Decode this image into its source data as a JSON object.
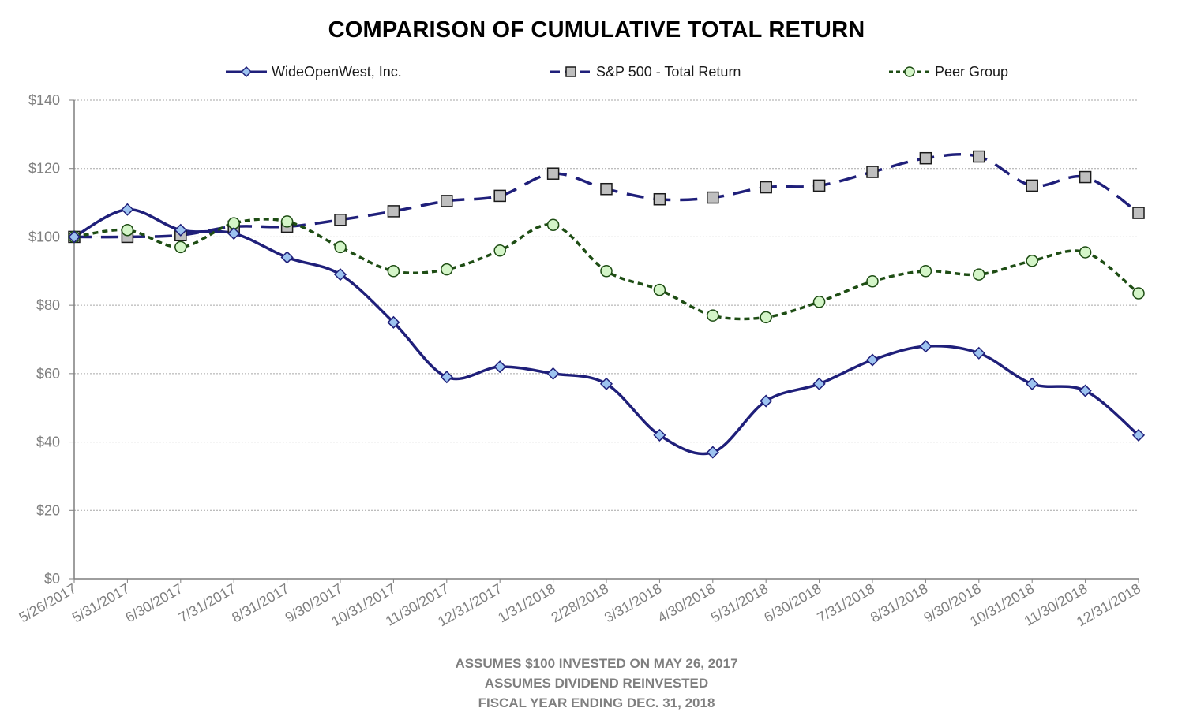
{
  "chart_data": {
    "type": "line",
    "title": "COMPARISON OF CUMULATIVE TOTAL RETURN",
    "x": [
      "5/26/2017",
      "5/31/2017",
      "6/30/2017",
      "7/31/2017",
      "8/31/2017",
      "9/30/2017",
      "10/31/2017",
      "11/30/2017",
      "12/31/2017",
      "1/31/2018",
      "2/28/2018",
      "3/31/2018",
      "4/30/2018",
      "5/31/2018",
      "6/30/2018",
      "7/31/2018",
      "8/31/2018",
      "9/30/2018",
      "10/31/2018",
      "11/30/2018",
      "12/31/2018"
    ],
    "series": [
      {
        "name": "WideOpenWest, Inc.",
        "color": "#1f1f7a",
        "marker": "diamond",
        "marker_fill": "#9dc3f0",
        "dash": "solid",
        "values": [
          100,
          108,
          102,
          101,
          94,
          89,
          75,
          59,
          62,
          60,
          57,
          42,
          37,
          52,
          57,
          64,
          68,
          66,
          57,
          55,
          42
        ]
      },
      {
        "name": "S&P 500 - Total Return",
        "color": "#1f1f7a",
        "marker": "square",
        "marker_fill": "#bfbfbf",
        "dash": "long-dash",
        "values": [
          100,
          100,
          100.5,
          103,
          103,
          105,
          107.5,
          110.5,
          112,
          118.5,
          114,
          111,
          111.5,
          114.5,
          115,
          119,
          123,
          123.5,
          115,
          117.5,
          107
        ]
      },
      {
        "name": "Peer Group",
        "color": "#1e4d14",
        "marker": "circle",
        "marker_fill": "#d4f5c8",
        "dash": "dotted",
        "values": [
          100,
          102,
          97,
          104,
          104.5,
          97,
          90,
          90.5,
          96,
          103.5,
          90,
          84.5,
          77,
          76.5,
          81,
          87,
          90,
          89,
          93,
          95.5,
          83.5
        ]
      }
    ],
    "ylim": [
      0,
      140
    ],
    "yticks": [
      0,
      20,
      40,
      60,
      80,
      100,
      120,
      140
    ],
    "ytick_labels": [
      "$0",
      "$20",
      "$40",
      "$60",
      "$80",
      "$100",
      "$120",
      "$140"
    ],
    "grid": "horizontal-dotted",
    "legend_position": "top",
    "xlabel": "",
    "ylabel": ""
  },
  "footnotes": [
    "ASSUMES $100 INVESTED ON MAY 26, 2017",
    "ASSUMES DIVIDEND REINVESTED",
    "FISCAL YEAR ENDING DEC. 31, 2018"
  ]
}
